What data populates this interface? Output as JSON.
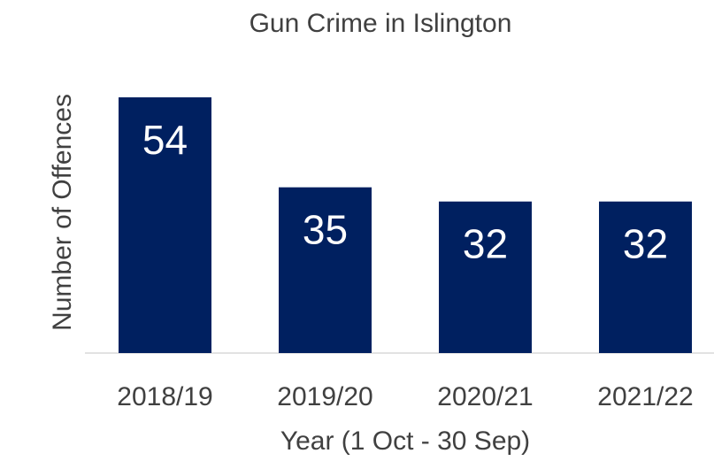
{
  "chart_data": {
    "type": "bar",
    "title": "Gun Crime in Islington",
    "xlabel": "Year (1 Oct - 30 Sep)",
    "ylabel": "Number of Offences",
    "categories": [
      "2018/19",
      "2019/20",
      "2020/21",
      "2021/22"
    ],
    "values": [
      54,
      35,
      32,
      32
    ],
    "data_labels": [
      "54",
      "35",
      "32",
      "32"
    ],
    "ylim": [
      0,
      54
    ],
    "grid": false,
    "legend": "none",
    "bar_color": "#002060",
    "label_color": "#ffffff",
    "text_color": "#404040",
    "axis_color": "#d9d9d9"
  }
}
